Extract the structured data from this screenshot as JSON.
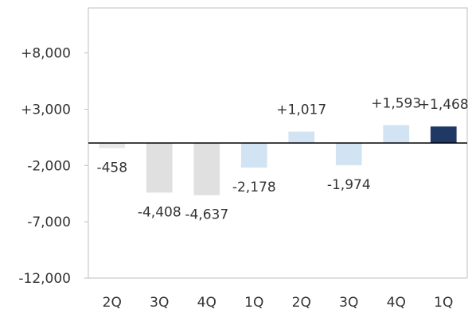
{
  "chart_data": {
    "type": "bar",
    "title": "",
    "xlabel": "",
    "ylabel": "",
    "categories": [
      "2Q",
      "3Q",
      "4Q",
      "1Q",
      "2Q",
      "3Q",
      "4Q",
      "1Q"
    ],
    "values": [
      -458,
      -4408,
      -4637,
      -2178,
      1017,
      -1974,
      1593,
      1468
    ],
    "value_labels": [
      "-458",
      "-4,408",
      "-4,637",
      "-2,178",
      "+1,017",
      "-1,974",
      "+1,593",
      "+1,468"
    ],
    "yticks": [
      8000,
      3000,
      -2000,
      -7000,
      -12000
    ],
    "ytick_labels": [
      "+8,000",
      "+3,000",
      "-2,000",
      "-7,000",
      "-12,000"
    ],
    "ylim": [
      -12000,
      12000
    ],
    "grid": false,
    "legend": "none",
    "bar_colors": [
      "#e8e8e8",
      "#e0e0e0",
      "#e0e0e0",
      "#d2e3f3",
      "#d2e3f3",
      "#d2e3f3",
      "#d2e3f3",
      "#1f3864"
    ],
    "colors": {
      "axis": "#bfbfbf",
      "frame": "#bfbfbf",
      "zero_line": "#000000",
      "text": "#333333"
    }
  }
}
